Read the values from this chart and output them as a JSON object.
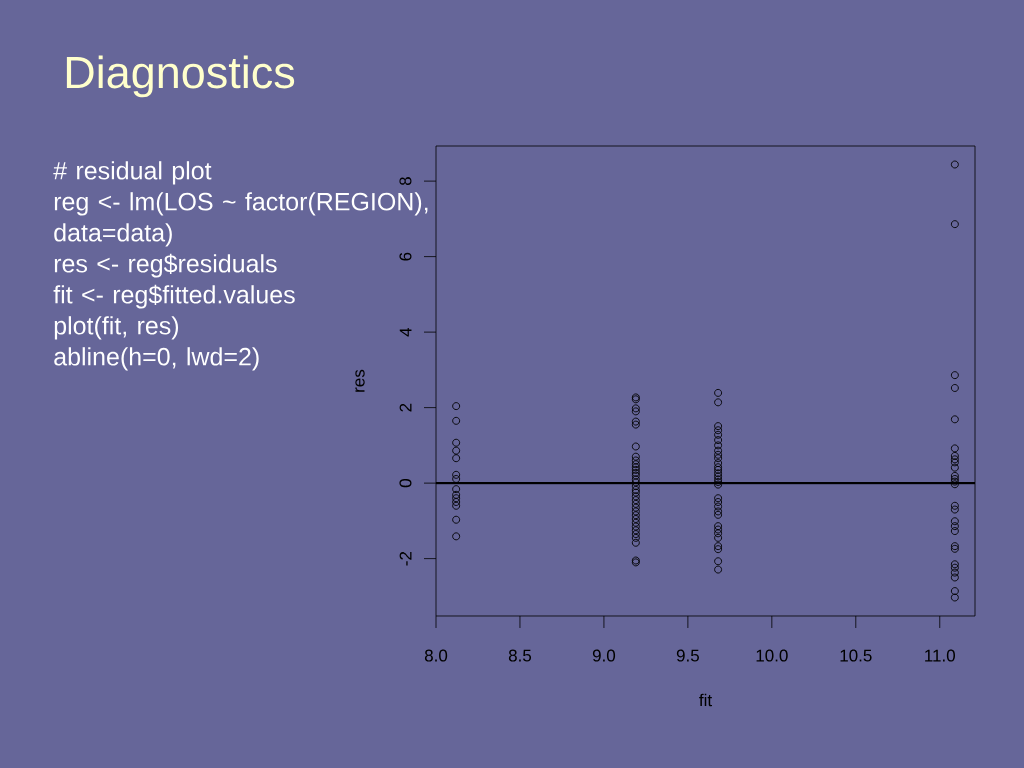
{
  "chart_data": {
    "type": "scatter",
    "title": "Diagnostics",
    "annotations": [
      "# residual plot",
      "reg <- lm(LOS ~ factor(REGION), data=data)",
      "res <- reg$residuals",
      "fit <- reg$fitted.values",
      "plot(fit, res)",
      "abline(h=0, lwd=2)"
    ],
    "xlabel": "fit",
    "ylabel": "res",
    "marker": "circle",
    "series": [
      {
        "color": "#000000",
        "x": [
          8.12,
          8.12,
          8.12,
          8.12,
          8.12,
          8.12,
          8.12,
          8.12,
          8.12,
          8.12,
          8.12,
          8.12,
          8.12,
          8.12,
          9.19,
          9.19,
          9.19,
          9.19,
          9.19,
          9.19,
          9.19,
          9.19,
          9.19,
          9.19,
          9.19,
          9.19,
          9.19,
          9.19,
          9.19,
          9.19,
          9.19,
          9.19,
          9.19,
          9.19,
          9.19,
          9.19,
          9.19,
          9.19,
          9.19,
          9.19,
          9.19,
          9.19,
          9.19,
          9.19,
          9.19,
          9.19,
          9.19,
          9.19,
          9.68,
          9.68,
          9.68,
          9.68,
          9.68,
          9.68,
          9.68,
          9.68,
          9.68,
          9.68,
          9.68,
          9.68,
          9.68,
          9.68,
          9.68,
          9.68,
          9.68,
          9.68,
          9.68,
          9.68,
          9.68,
          9.68,
          9.68,
          9.68,
          9.68,
          9.68,
          9.68,
          9.68,
          9.68,
          9.68,
          9.68,
          11.09,
          11.09,
          11.09,
          11.09,
          11.09,
          11.09,
          11.09,
          11.09,
          11.09,
          11.09,
          11.09,
          11.09,
          11.09,
          11.09,
          11.09,
          11.09,
          11.09,
          11.09,
          11.09,
          11.09,
          11.09,
          11.09,
          11.09,
          11.09,
          11.09,
          11.09,
          11.09
        ],
        "values": [
          2.04,
          1.65,
          1.07,
          0.86,
          0.66,
          0.22,
          0.11,
          -0.16,
          -0.31,
          -0.4,
          -0.5,
          -0.6,
          -0.97,
          -1.41,
          2.27,
          2.22,
          1.98,
          1.9,
          1.63,
          1.55,
          0.97,
          0.7,
          0.6,
          0.5,
          0.42,
          0.35,
          0.27,
          0.2,
          0.1,
          0.02,
          -0.08,
          -0.18,
          -0.25,
          -0.35,
          -0.45,
          -0.55,
          -0.65,
          -0.75,
          -0.85,
          -0.95,
          -1.05,
          -1.15,
          -1.25,
          -1.35,
          -1.45,
          -1.58,
          -2.05,
          -2.1,
          2.39,
          2.14,
          1.51,
          1.4,
          1.28,
          1.14,
          1.0,
          0.86,
          0.75,
          0.66,
          0.53,
          0.42,
          0.35,
          0.26,
          0.18,
          0.1,
          0.03,
          -0.04,
          -0.4,
          -0.5,
          -0.62,
          -0.75,
          -0.84,
          -1.14,
          -1.23,
          -1.33,
          -1.45,
          -1.67,
          -1.75,
          -2.07,
          -2.29,
          8.44,
          6.86,
          2.86,
          2.52,
          1.69,
          0.92,
          0.72,
          0.63,
          0.55,
          0.41,
          0.19,
          0.11,
          0.04,
          -0.03,
          -0.6,
          -0.7,
          -1.01,
          -1.14,
          -1.27,
          -1.67,
          -1.74,
          -2.15,
          -2.24,
          -2.37,
          -2.5,
          -2.86,
          -3.03
        ]
      }
    ],
    "ref_lines": [
      {
        "axis": "y",
        "value": 0,
        "color": "#000000"
      }
    ],
    "xlim": [
      8.0,
      11.21
    ],
    "ylim": [
      -3.52,
      8.93
    ],
    "xticks": [
      {
        "value": 8.0,
        "label": "8.0"
      },
      {
        "value": 8.5,
        "label": "8.5"
      },
      {
        "value": 9.0,
        "label": "9.0"
      },
      {
        "value": 9.5,
        "label": "9.5"
      },
      {
        "value": 10.0,
        "label": "10.0"
      },
      {
        "value": 10.5,
        "label": "10.5"
      },
      {
        "value": 11.0,
        "label": "11.0"
      }
    ],
    "yticks": [
      -2,
      0,
      2,
      4,
      6,
      8
    ]
  }
}
